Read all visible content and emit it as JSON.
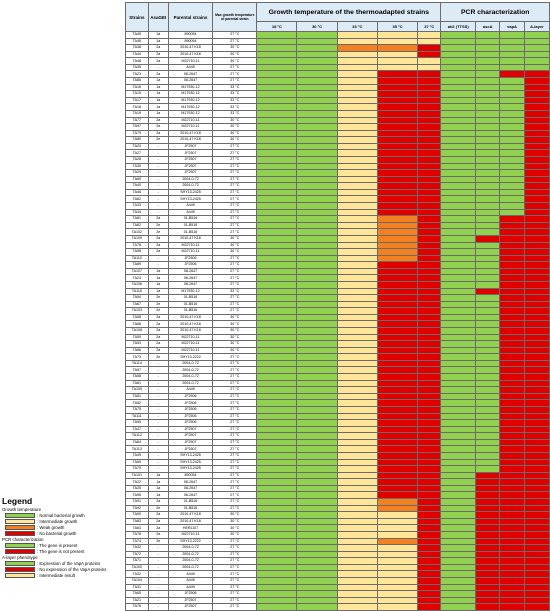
{
  "headers": {
    "strains": "Strains",
    "asagei": "AsaGEI",
    "parental": "Parental strains",
    "maxgrowth": "Max growth temperature of parental strain",
    "growth_group": "Growth temperature of the thermoadapted strains",
    "pcr_group": "PCR characterization",
    "temps": [
      "18 °C",
      "30 °C",
      "33 °C",
      "35 °C",
      "37 °C"
    ],
    "genes": [
      "ati2 (TTSS)",
      "ascA",
      "vapA",
      "A-layer"
    ]
  },
  "palette": {
    "G": "#92d050",
    "L": "#ffe699",
    "O": "#f4801f",
    "R": "#e00000"
  },
  "rows": [
    [
      "TA45",
      "1a",
      "890054",
      "27 °C",
      "GGLLL",
      "GGGG"
    ],
    [
      "TA46",
      "1a",
      "890054",
      "27 °C",
      "GGLLL",
      "GGGG"
    ],
    [
      "TA38",
      "2a",
      "2010-47 K18",
      "30 °C",
      "GGOOR",
      "GGGG"
    ],
    [
      "TA44",
      "2a",
      "2010-47 K18",
      "30 °C",
      "GGLLR",
      "GGGG"
    ],
    [
      "TA48",
      "2a",
      "M22710-11",
      "30 °C",
      "GGLLL",
      "GGGG"
    ],
    [
      "TA35",
      "-",
      "A449",
      "27 °C",
      "GGLLL",
      "GGGG"
    ],
    [
      "TA23",
      "2a",
      "08-2647",
      "27 °C",
      "GGLRR",
      "GGRR"
    ],
    [
      "TA85",
      "1a",
      "08-2647",
      "27 °C",
      "GGLRR",
      "GGGR"
    ],
    [
      "TA16",
      "1a",
      "M17930-12",
      "33 °C",
      "GGLRR",
      "GGGR"
    ],
    [
      "TA15",
      "1a",
      "M17930-12",
      "33 °C",
      "GGLRR",
      "GGGR"
    ],
    [
      "TA17",
      "1a",
      "M17930-12",
      "33 °C",
      "GGLRR",
      "GGGR"
    ],
    [
      "TA18",
      "1a",
      "M17930-12",
      "33 °C",
      "GGLRR",
      "GGGR"
    ],
    [
      "TA19",
      "1a",
      "M17930-12",
      "33 °C",
      "GGLRR",
      "GGGR"
    ],
    [
      "TA77",
      "2a",
      "M22710-11",
      "30 °C",
      "GGLRR",
      "GGGR"
    ],
    [
      "TA97",
      "2a",
      "M22710-11",
      "30 °C",
      "GGLRR",
      "GGGR"
    ],
    [
      "TA79",
      "2a",
      "2010-47 K18",
      "30 °C",
      "GGLRR",
      "GGGR"
    ],
    [
      "TA80",
      "2e",
      "2010-47 K18",
      "30 °C",
      "GGLRR",
      "GGGR"
    ],
    [
      "TA20",
      "-",
      "JF2507",
      "27 °C",
      "GGLRR",
      "GGGR"
    ],
    [
      "TA27",
      "-",
      "JF2507",
      "27 °C",
      "GGLRR",
      "GGGR"
    ],
    [
      "TA28",
      "-",
      "JF2507",
      "27 °C",
      "GGLRR",
      "GGGR"
    ],
    [
      "TA30",
      "-",
      "JF2507",
      "27 °C",
      "GGLRR",
      "GGGR"
    ],
    [
      "TA29",
      "-",
      "JF2507",
      "27 °C",
      "GGLRR",
      "GGGR"
    ],
    [
      "TA69",
      "-",
      "2004-0-72",
      "27 °C",
      "GGLRR",
      "GGGR"
    ],
    [
      "TA40",
      "-",
      "2004-0-72",
      "27 °C",
      "GGLRR",
      "GGGR"
    ],
    [
      "TA46",
      "-",
      "SHY13-2425",
      "27 °C",
      "GGLRR",
      "GGGR"
    ],
    [
      "TA62",
      "-",
      "SHY13-2425",
      "27 °C",
      "GGLRR",
      "GGGR"
    ],
    [
      "TA33",
      "-",
      "A449",
      "27 °C",
      "GGLRR",
      "GGGR"
    ],
    [
      "TA34",
      "-",
      "A449",
      "27 °C",
      "GGLRR",
      "GGGR"
    ],
    [
      "TA81",
      "2a",
      "01-B516",
      "27 °C",
      "GGLOR",
      "GGRR"
    ],
    [
      "TA82",
      "2e",
      "01-B516",
      "27 °C",
      "GGLOR",
      "GGRR"
    ],
    [
      "TA102",
      "2e",
      "01-B516",
      "27 °C",
      "GGLOR",
      "GGRR"
    ],
    [
      "TA109",
      "2a",
      "2010-47 K18",
      "30 °C",
      "GGLOR",
      "GRRR"
    ],
    [
      "TA76",
      "2a",
      "M22710-11",
      "30 °C",
      "GGLOR",
      "GGRR"
    ],
    [
      "TA98",
      "2a",
      "M22710-11",
      "30 °C",
      "GGLOR",
      "GGRR"
    ],
    [
      "TA110",
      "-",
      "JF2506",
      "27 °C",
      "GGLOR",
      "GGRR"
    ],
    [
      "TA89",
      "-",
      "JF2506",
      "27 °C",
      "GGLRR",
      "GGRR"
    ],
    [
      "TA107",
      "1a",
      "08-2647",
      "27 °C",
      "GGLRR",
      "GGRR"
    ],
    [
      "TA24",
      "1a",
      "08-2647",
      "27 °C",
      "GGLRR",
      "GGRR"
    ],
    [
      "TA106",
      "1a",
      "08-2647",
      "27 °C",
      "GGLRR",
      "GGRR"
    ],
    [
      "TA115",
      "1a",
      "M17930-12",
      "33 °C",
      "GGLRR",
      "GRRR"
    ],
    [
      "TA54",
      "2e",
      "01-B516",
      "27 °C",
      "GGLRR",
      "GGRR"
    ],
    [
      "TA67",
      "2e",
      "01-B516",
      "27 °C",
      "GGLRR",
      "GGRR"
    ],
    [
      "TA103",
      "2e",
      "01-B516",
      "27 °C",
      "GGLRR",
      "GGRR"
    ],
    [
      "TA58",
      "2a",
      "2010-47 K18",
      "30 °C",
      "GGLRR",
      "GGRR"
    ],
    [
      "TA68",
      "2a",
      "2010-47 K18",
      "30 °C",
      "GGLRR",
      "GGRR"
    ],
    [
      "TA108",
      "2a",
      "2010-47 K18",
      "30 °C",
      "GGLRR",
      "GGRR"
    ],
    [
      "TA50",
      "2a",
      "M22710-11",
      "30 °C",
      "GGLRR",
      "GGRR"
    ],
    [
      "TA53",
      "2a",
      "M22710-11",
      "30 °C",
      "GGLRR",
      "GGRR"
    ],
    [
      "TA66",
      "2a",
      "M22710-11",
      "30 °C",
      "GGLRR",
      "GGRR"
    ],
    [
      "TA73",
      "2e",
      "SHY13-2222",
      "27 °C",
      "GGLRR",
      "GGRR"
    ],
    [
      "TA114",
      "-",
      "2004-0-72",
      "27 °C",
      "GGLRR",
      "GGRR"
    ],
    [
      "TA57",
      "-",
      "2004-0-72",
      "27 °C",
      "GGLRR",
      "GGRR"
    ],
    [
      "TA58",
      "-",
      "2004-0-72",
      "27 °C",
      "GGLRR",
      "GGRR"
    ],
    [
      "TA61",
      "-",
      "2004-0-72",
      "27 °C",
      "GGLRR",
      "GGRR"
    ],
    [
      "TA105",
      "-",
      "A449",
      "27 °C",
      "GGLRR",
      "GGRR"
    ],
    [
      "TA51",
      "-",
      "JF2506",
      "27 °C",
      "GGLRR",
      "GGRR"
    ],
    [
      "TA52",
      "-",
      "JF2506",
      "27 °C",
      "GGLRR",
      "GGRR"
    ],
    [
      "TA75",
      "-",
      "JF2506",
      "27 °C",
      "GGLRR",
      "GGRR"
    ],
    [
      "TA111",
      "-",
      "JF2506",
      "27 °C",
      "GGLRR",
      "GGRR"
    ],
    [
      "TA55",
      "-",
      "JF2506",
      "27 °C",
      "GGLRR",
      "GGRR"
    ],
    [
      "TA47",
      "-",
      "JF2507",
      "27 °C",
      "GGLRR",
      "GGRR"
    ],
    [
      "TA112",
      "-",
      "JF2507",
      "27 °C",
      "GGLRR",
      "GGRR"
    ],
    [
      "TA64",
      "-",
      "JF2507",
      "27 °C",
      "GGLRR",
      "GGRR"
    ],
    [
      "TA113",
      "-",
      "JF2507",
      "27 °C",
      "GGLRR",
      "GGRR"
    ],
    [
      "TA49",
      "-",
      "SHY13-2425",
      "27 °C",
      "GGLRR",
      "GGRR"
    ],
    [
      "TA69",
      "-",
      "SHY13-2425",
      "27 °C",
      "GGLRR",
      "GGRR"
    ],
    [
      "TA70",
      "-",
      "SHY13-2425",
      "27 °C",
      "GGLRR",
      "GGRR"
    ],
    [
      "TA101",
      "1a",
      "890054",
      "27 °C",
      "GGLRR",
      "GRRR"
    ],
    [
      "TA22",
      "1a",
      "08-2647",
      "27 °C",
      "GGLRR",
      "GRRR"
    ],
    [
      "TA25",
      "1a",
      "08-2647",
      "27 °C",
      "GGLRR",
      "GRRR"
    ],
    [
      "TA96",
      "1a",
      "08-2647",
      "27 °C",
      "GGLRR",
      "GRRR"
    ],
    [
      "TA91",
      "2a",
      "01-B516",
      "27 °C",
      "GGLOR",
      "GRRR"
    ],
    [
      "TA92",
      "2e",
      "01-B516",
      "27 °C",
      "GGLOR",
      "GRRR"
    ],
    [
      "TA90",
      "2a",
      "2010-47 K18",
      "30 °C",
      "GGLLR",
      "GRRR"
    ],
    [
      "TA83",
      "2a",
      "2010-47 K18",
      "30 °C",
      "GGLLR",
      "GRRR"
    ],
    [
      "TA63",
      "2a",
      "HER1107",
      "30 °C",
      "GGLLR",
      "GRRR"
    ],
    [
      "TA78",
      "2a",
      "M22710-11",
      "30 °C",
      "GGLLR",
      "GRRR"
    ],
    [
      "TA74",
      "2e",
      "SHY13-2222",
      "27 °C",
      "GGLOR",
      "GRRR"
    ],
    [
      "TA32",
      "-",
      "2004-0-72",
      "27 °C",
      "GGLLR",
      "GRRR"
    ],
    [
      "TA72",
      "-",
      "2004-0-72",
      "27 °C",
      "GGLLR",
      "GRRR"
    ],
    [
      "TA71",
      "-",
      "2004-0-72",
      "27 °C",
      "GGLLR",
      "GRRR"
    ],
    [
      "TA100",
      "-",
      "2004-0-72",
      "27 °C",
      "GGLLR",
      "GRRR"
    ],
    [
      "TA32",
      "-",
      "A449",
      "27 °C",
      "GGLLR",
      "GRRR"
    ],
    [
      "TA104",
      "-",
      "A449",
      "27 °C",
      "GGLLR",
      "GRRR"
    ],
    [
      "TA31",
      "-",
      "A449",
      "27 °C",
      "GGLLR",
      "GRRR"
    ],
    [
      "TA65",
      "-",
      "JF2506",
      "27 °C",
      "GGLLR",
      "GRRR"
    ],
    [
      "TA21",
      "-",
      "JF2507",
      "27 °C",
      "GGLLR",
      "GRRR"
    ],
    [
      "TA76",
      "-",
      "JF2507",
      "27 °C",
      "GGLLR",
      "GRRR"
    ]
  ],
  "legend": {
    "title": "Legend",
    "sections": [
      {
        "name": "Growth temperature",
        "items": [
          {
            "color": "#92d050",
            "label": ": Normal bacterial growth"
          },
          {
            "color": "#ffe699",
            "label": ": Intermediate growth"
          },
          {
            "color": "#f4801f",
            "label": ": Weak growth"
          },
          {
            "color": "#e00000",
            "label": ": No bacterial growth"
          }
        ]
      },
      {
        "name": "PCR characterization",
        "items": [
          {
            "color": "#92d050",
            "label": ": The gene is present"
          },
          {
            "color": "#e00000",
            "label": ": The gene is not present"
          }
        ]
      },
      {
        "name": "A-layer phenotype",
        "items": [
          {
            "color": "#92d050",
            "label": ": Expression of the VapA proteins"
          },
          {
            "color": "#e00000",
            "label": ": No expression of the VapA proteins"
          },
          {
            "color": "#ffe699",
            "label": ": Intermediate result"
          }
        ]
      }
    ]
  }
}
